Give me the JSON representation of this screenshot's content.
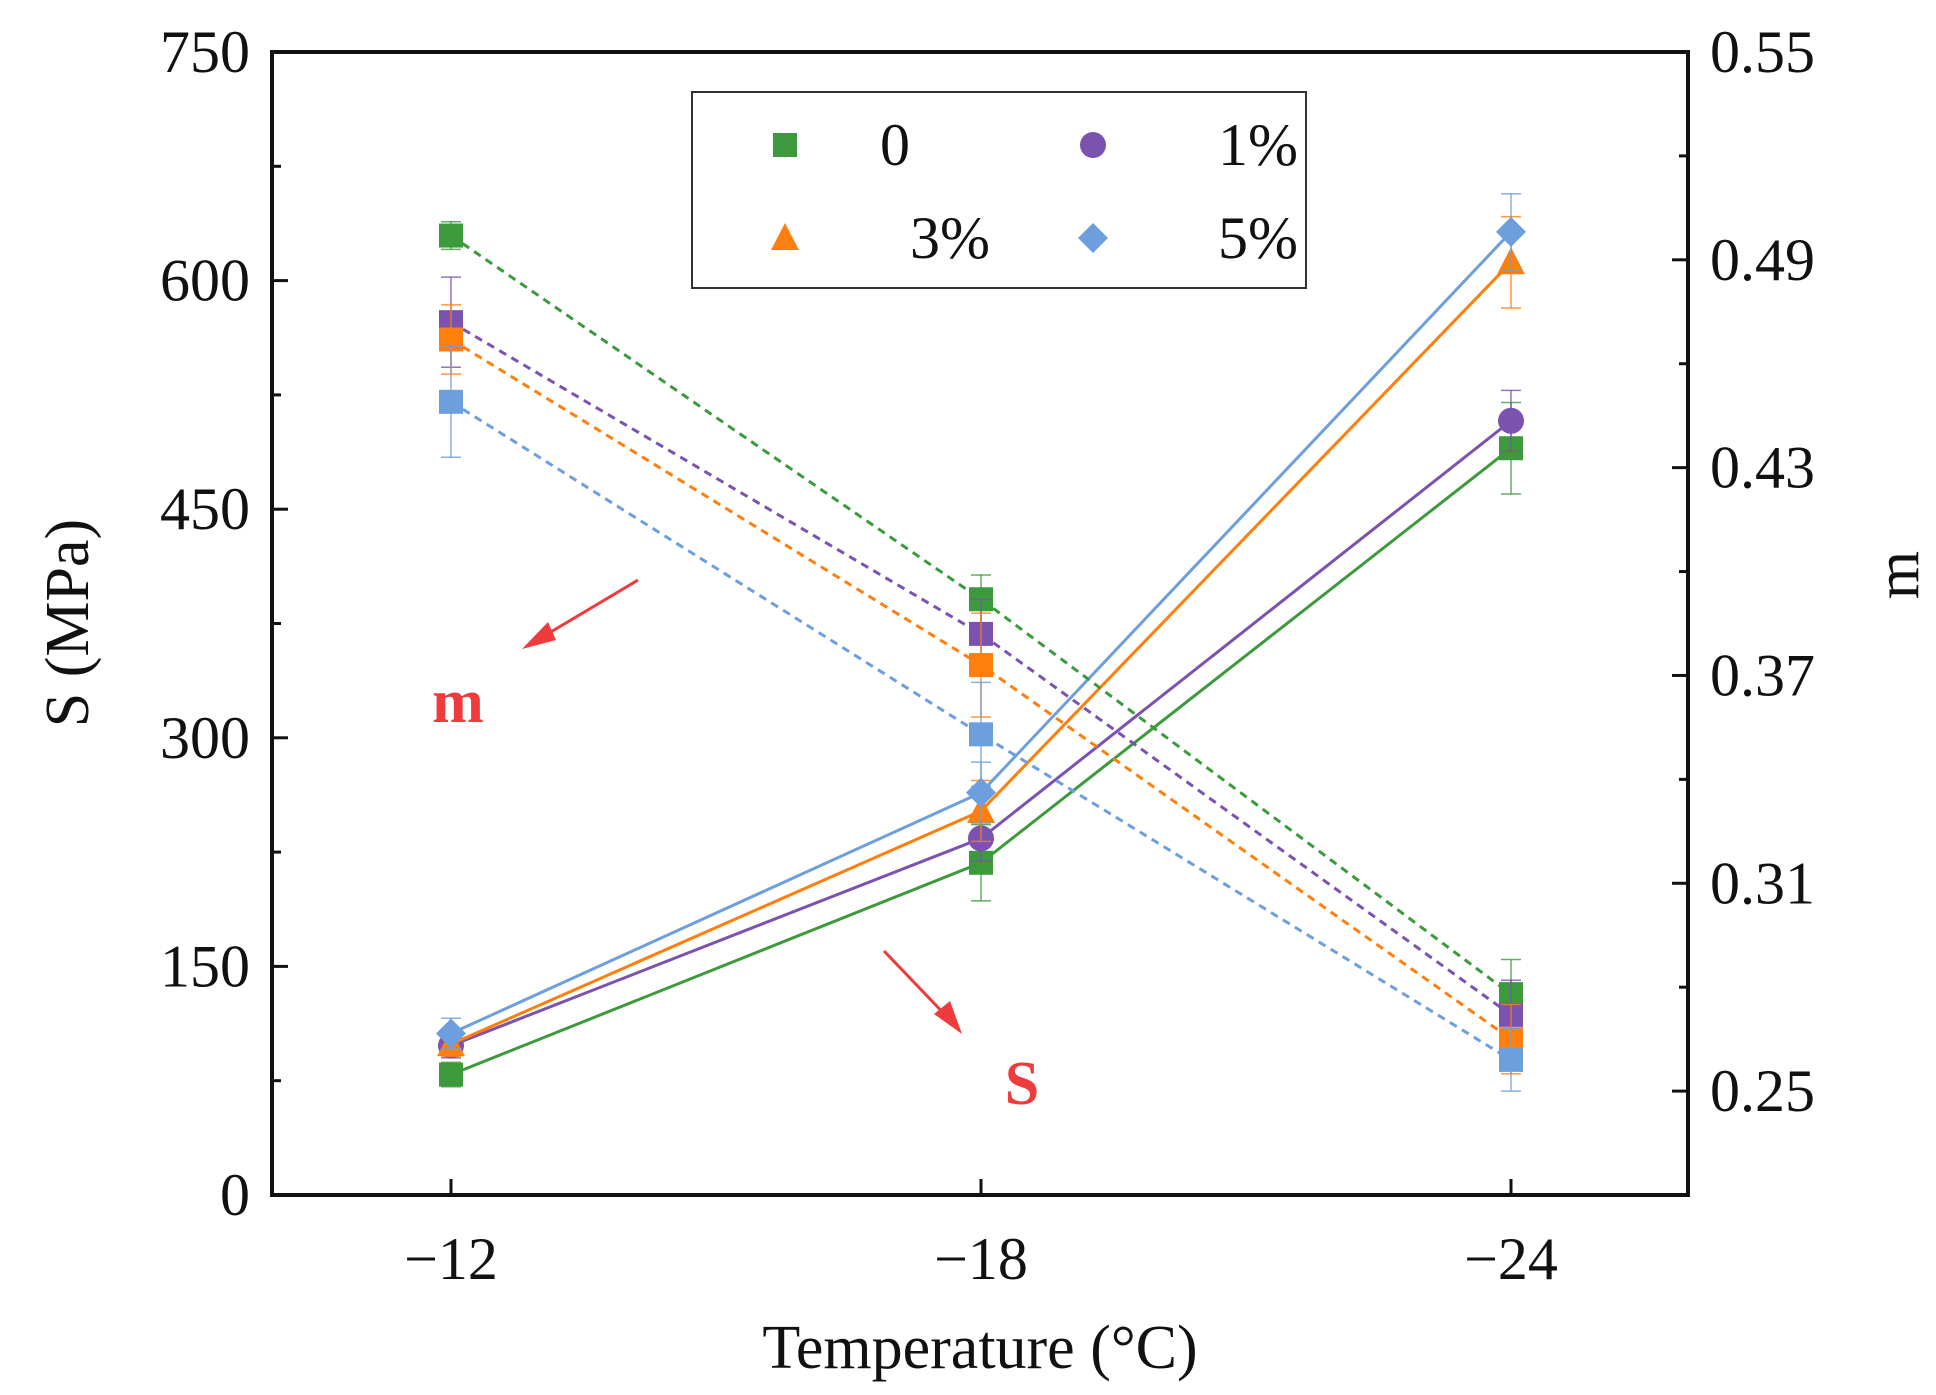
{
  "chart_data": {
    "type": "line",
    "x_axis": {
      "title": "Temperature (°C)",
      "categories": [
        "−12",
        "−18",
        "−24"
      ]
    },
    "y_left": {
      "title": "S (MPa)",
      "ylim": [
        0,
        750
      ],
      "ticks": [
        "0",
        "150",
        "300",
        "450",
        "600",
        "750"
      ]
    },
    "y_right": {
      "title": "m",
      "ylim": [
        0.22,
        0.55
      ],
      "ticks": [
        "0.25",
        "0.31",
        "0.37",
        "0.43",
        "0.49",
        "0.55"
      ]
    },
    "legend": {
      "placement": "top-center",
      "entries": [
        {
          "label": "0",
          "color": "#3c9a3c",
          "marker": "square"
        },
        {
          "label": "1%",
          "color": "#7b52b0",
          "marker": "circle"
        },
        {
          "label": "3%",
          "color": "#ff7f0e",
          "marker": "triangle"
        },
        {
          "label": "5%",
          "color": "#6d9ede",
          "marker": "diamond"
        }
      ]
    },
    "series": [
      {
        "group": "S",
        "axis": "left",
        "legend_index": 0,
        "style": "solid",
        "marker": "square",
        "color": "#3c9a3c",
        "values": [
          79,
          218,
          490
        ],
        "errors": [
          8,
          25,
          30
        ]
      },
      {
        "group": "S",
        "axis": "left",
        "legend_index": 1,
        "style": "solid",
        "marker": "circle",
        "color": "#7b52b0",
        "values": [
          98,
          234,
          508
        ],
        "errors": [
          8,
          15,
          20
        ]
      },
      {
        "group": "S",
        "axis": "left",
        "legend_index": 2,
        "style": "solid",
        "marker": "triangle",
        "color": "#ff7f0e",
        "values": [
          99,
          252,
          612
        ],
        "errors": [
          8,
          20,
          30
        ]
      },
      {
        "group": "S",
        "axis": "left",
        "legend_index": 3,
        "style": "solid",
        "marker": "diamond",
        "color": "#6d9ede",
        "values": [
          106,
          264,
          632
        ],
        "errors": [
          10,
          20,
          25
        ]
      },
      {
        "group": "m",
        "axis": "right",
        "legend_index": 0,
        "style": "dashed",
        "marker": "square",
        "color": "#3c9a3c",
        "values": [
          0.497,
          0.392,
          0.278
        ],
        "errors": [
          0.004,
          0.007,
          0.01
        ]
      },
      {
        "group": "m",
        "axis": "right",
        "legend_index": 1,
        "style": "dashed",
        "marker": "circle",
        "color": "#7b52b0",
        "values": [
          0.472,
          0.382,
          0.272
        ],
        "errors": [
          0.013,
          0.01,
          0.01
        ]
      },
      {
        "group": "m",
        "axis": "right",
        "legend_index": 2,
        "style": "dashed",
        "marker": "triangle",
        "color": "#ff7f0e",
        "values": [
          0.467,
          0.373,
          0.265
        ],
        "errors": [
          0.01,
          0.015,
          0.01
        ]
      },
      {
        "group": "m",
        "axis": "right",
        "legend_index": 3,
        "style": "dashed",
        "marker": "diamond",
        "color": "#6d9ede",
        "values": [
          0.449,
          0.353,
          0.259
        ],
        "errors": [
          0.016,
          0.015,
          0.009
        ]
      }
    ],
    "annotations": [
      {
        "text": "m",
        "color": "#ef3b3b"
      },
      {
        "text": "S",
        "color": "#ef3b3b"
      }
    ]
  }
}
